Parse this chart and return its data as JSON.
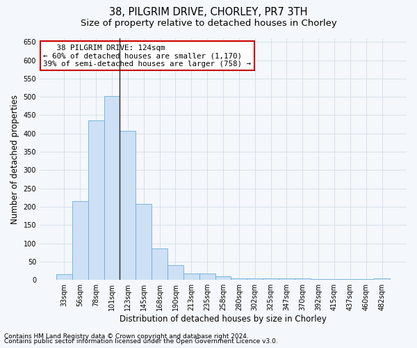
{
  "title_line1": "38, PILGRIM DRIVE, CHORLEY, PR7 3TH",
  "title_line2": "Size of property relative to detached houses in Chorley",
  "xlabel": "Distribution of detached houses by size in Chorley",
  "ylabel": "Number of detached properties",
  "categories": [
    "33sqm",
    "56sqm",
    "78sqm",
    "101sqm",
    "123sqm",
    "145sqm",
    "168sqm",
    "190sqm",
    "213sqm",
    "235sqm",
    "258sqm",
    "280sqm",
    "302sqm",
    "325sqm",
    "347sqm",
    "370sqm",
    "392sqm",
    "415sqm",
    "437sqm",
    "460sqm",
    "482sqm"
  ],
  "values": [
    15,
    215,
    435,
    503,
    408,
    207,
    85,
    40,
    18,
    18,
    10,
    5,
    5,
    5,
    5,
    5,
    3,
    3,
    3,
    3,
    5
  ],
  "bar_color": "#cde0f5",
  "bar_edge_color": "#6aaed6",
  "highlight_bar_index": 4,
  "highlight_line_color": "#222222",
  "annotation_line1": "   38 PILGRIM DRIVE: 124sqm",
  "annotation_line2": "← 60% of detached houses are smaller (1,170)",
  "annotation_line3": "39% of semi-detached houses are larger (758) →",
  "annotation_box_facecolor": "#ffffff",
  "annotation_box_edgecolor": "#cc0000",
  "ylim": [
    0,
    660
  ],
  "yticks": [
    0,
    50,
    100,
    150,
    200,
    250,
    300,
    350,
    400,
    450,
    500,
    550,
    600,
    650
  ],
  "footer_line1": "Contains HM Land Registry data © Crown copyright and database right 2024.",
  "footer_line2": "Contains public sector information licensed under the Open Government Licence v3.0.",
  "grid_color": "#d0dde8",
  "background_color": "#f4f7fb",
  "title_fontsize": 10.5,
  "subtitle_fontsize": 9.5,
  "tick_fontsize": 7,
  "ylabel_fontsize": 8.5,
  "xlabel_fontsize": 8.5,
  "annotation_fontsize": 7.8,
  "footer_fontsize": 6.5
}
